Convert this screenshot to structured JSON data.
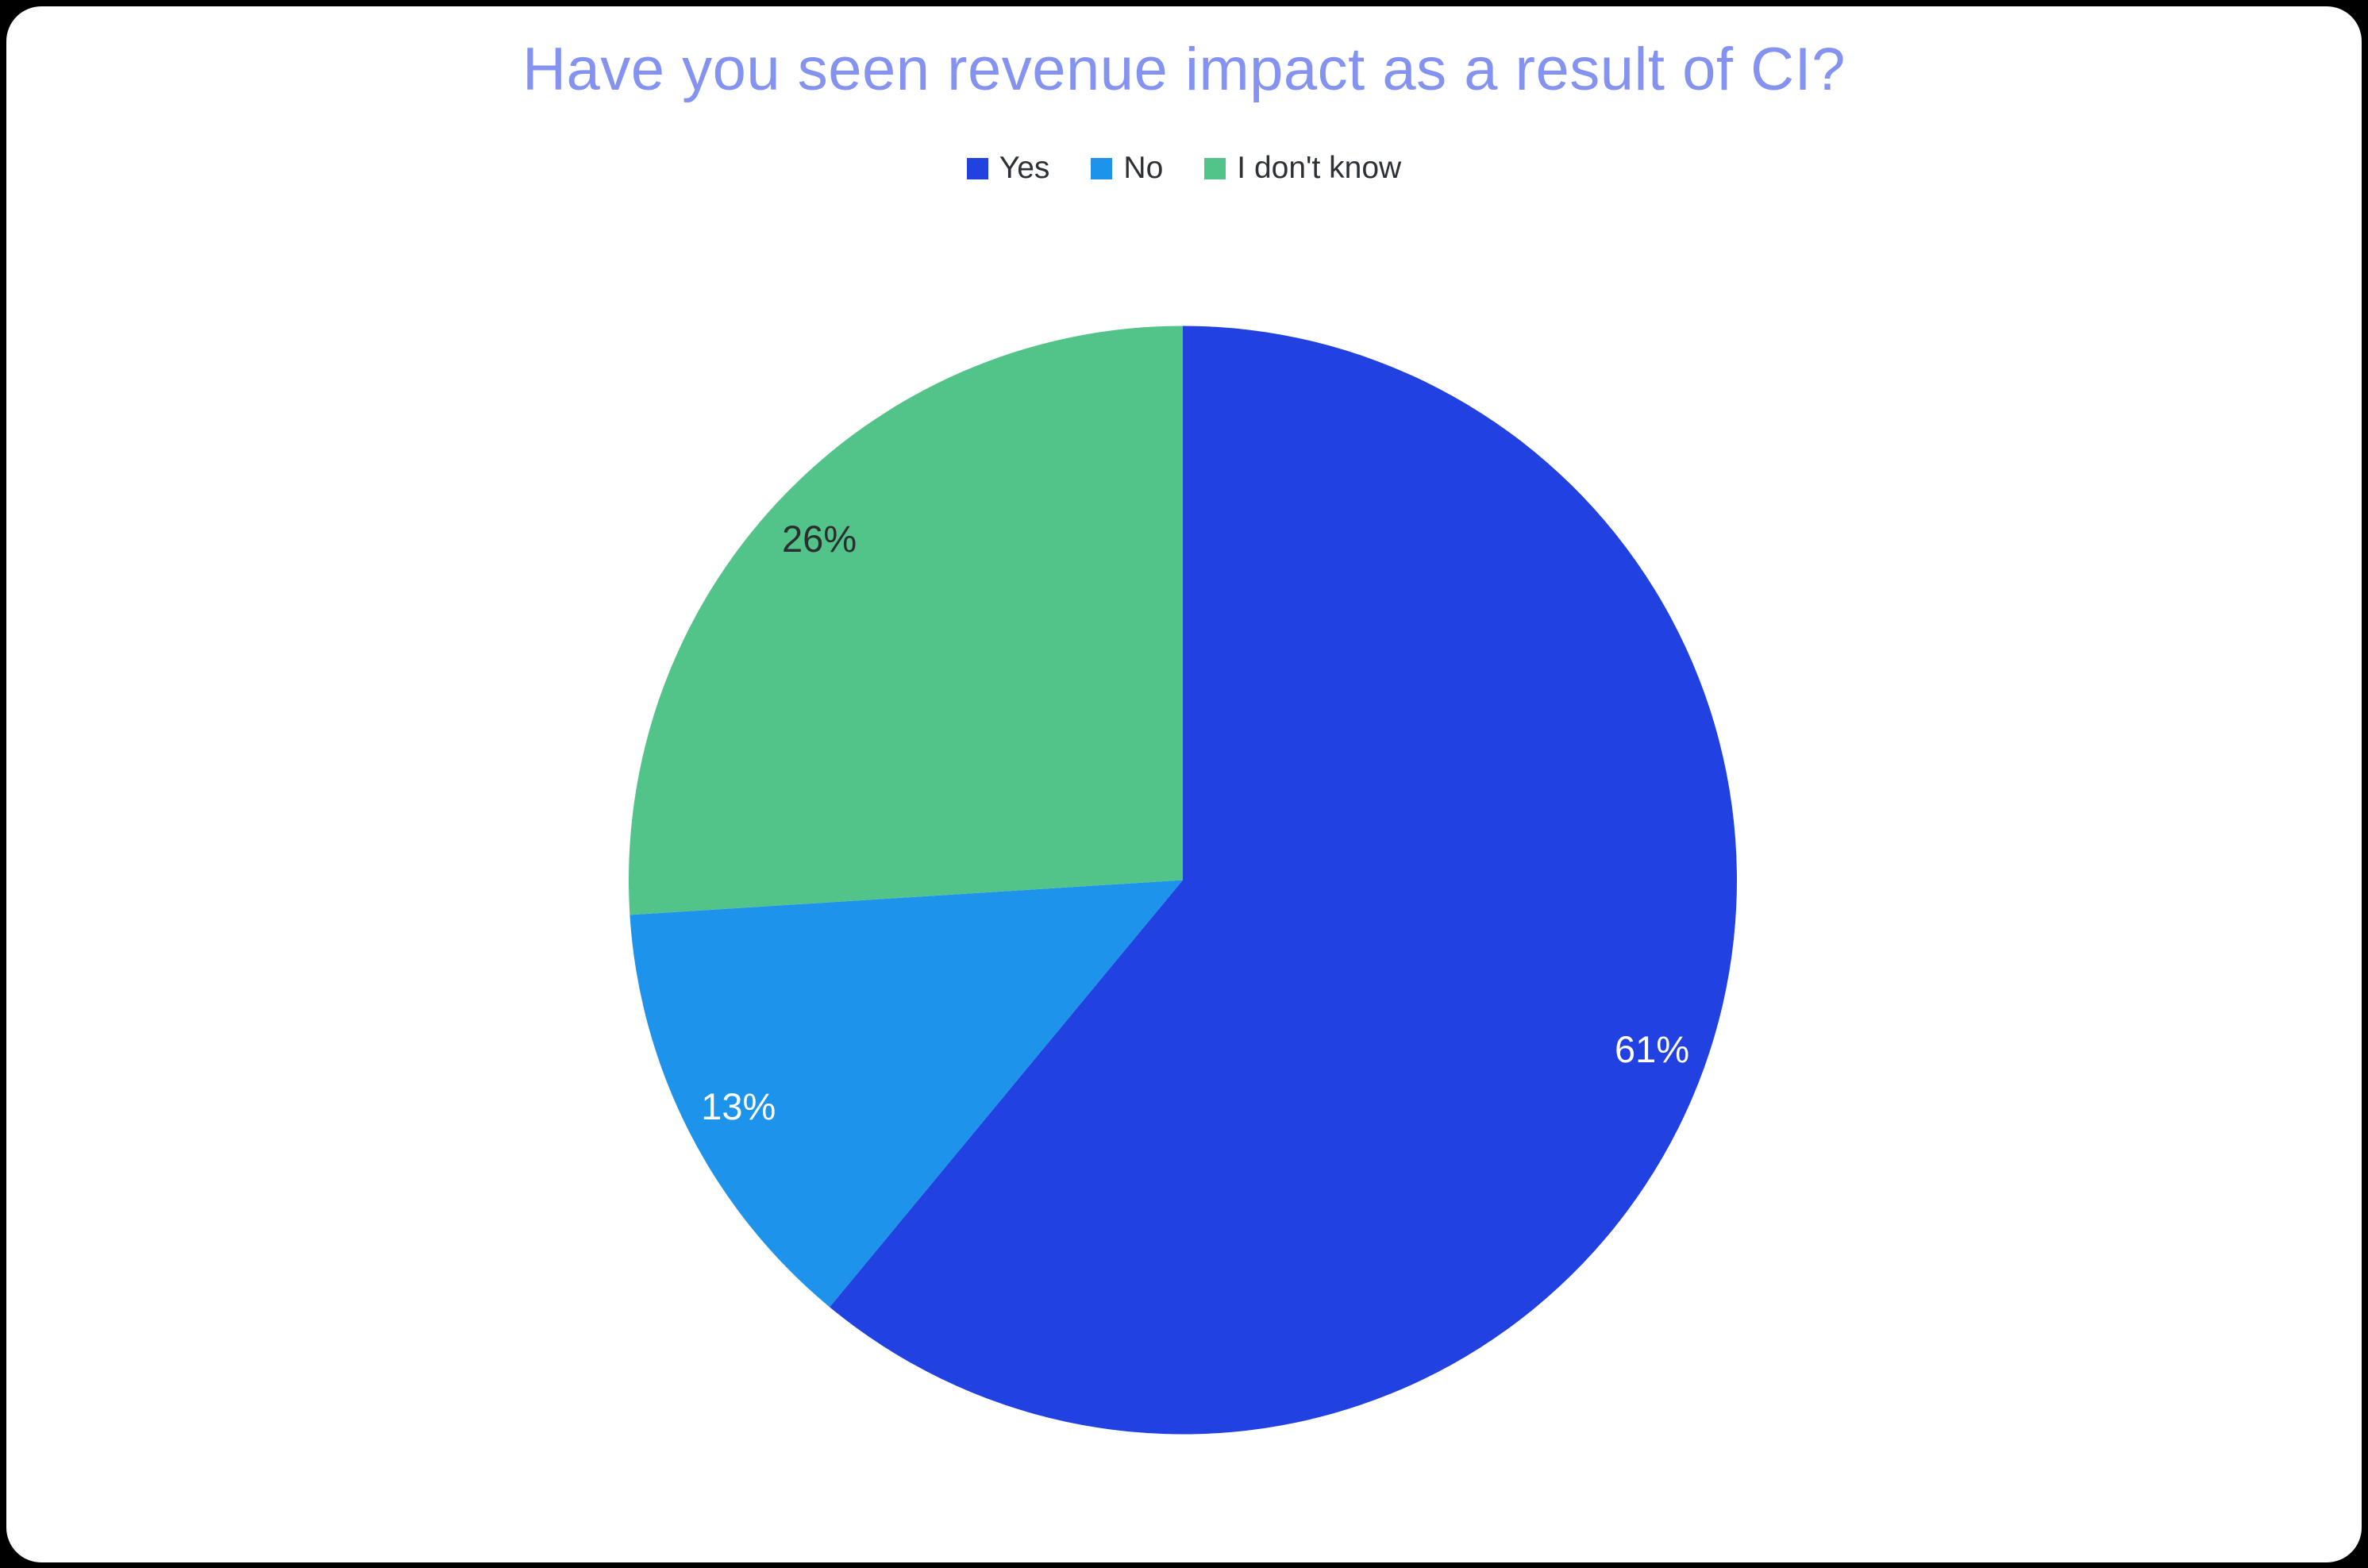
{
  "window": {
    "frame_color": "#000000",
    "panel_color": "#ffffff"
  },
  "chart_data": {
    "type": "pie",
    "title": "Have you seen revenue impact as a result of CI?",
    "title_color": "#8492F0",
    "legend_position": "top",
    "legend_text_color": "#2D3034",
    "categories": [
      "Yes",
      "No",
      "I don't know"
    ],
    "values": [
      61,
      13,
      26
    ],
    "data_labels": [
      "61%",
      "13%",
      "26%"
    ],
    "colors": [
      "#2141E0",
      "#1E93EB",
      "#52C389"
    ],
    "data_label_colors": [
      "#FFFFFF",
      "#FFFFFF",
      "#2B2D30"
    ],
    "start_angle_deg": 0,
    "direction": "clockwise"
  }
}
